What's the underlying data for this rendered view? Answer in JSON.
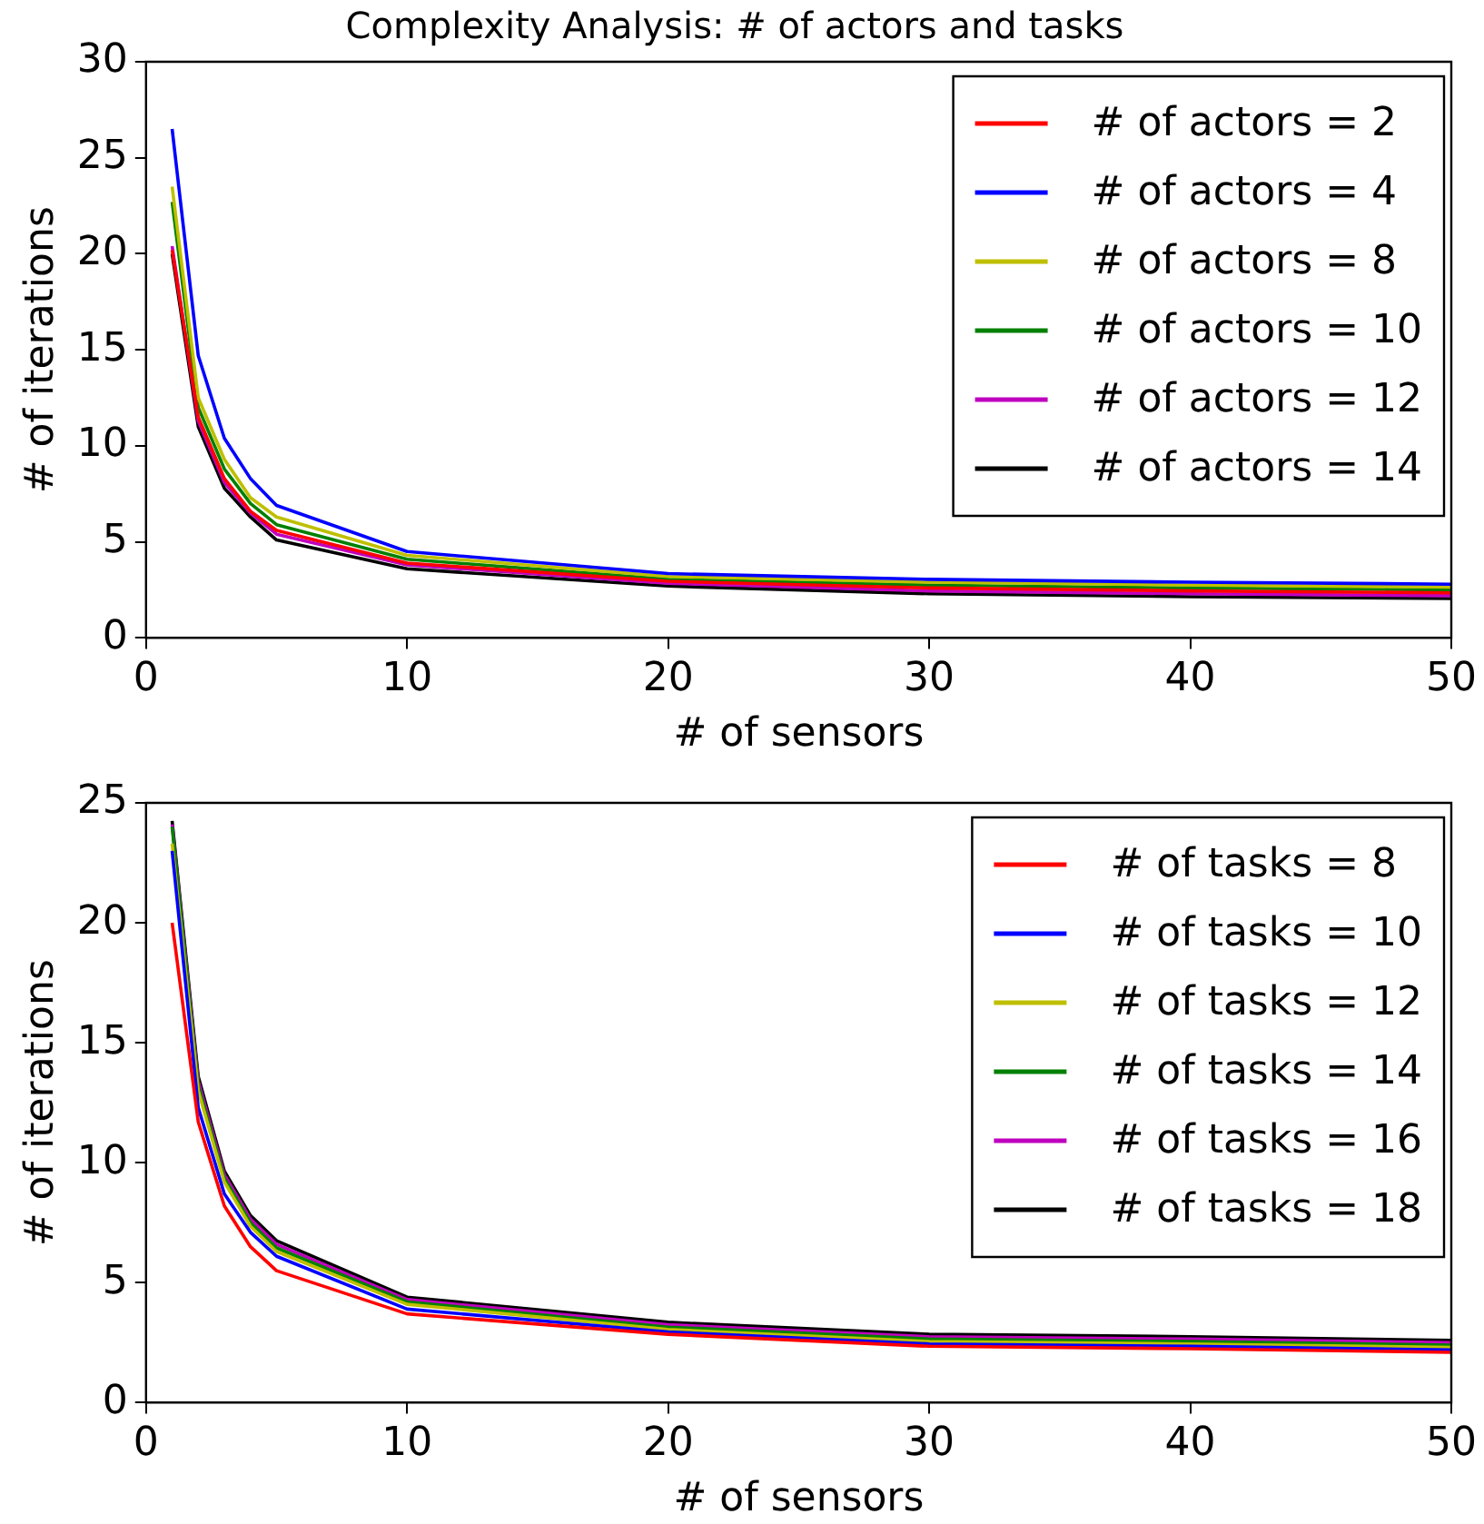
{
  "chart_data": [
    {
      "type": "line",
      "title": "Complexity Analysis: # of actors and tasks",
      "xlabel": "# of sensors",
      "ylabel": "# of iterations",
      "x": [
        1,
        2,
        3,
        4,
        5,
        10,
        20,
        30,
        40,
        50
      ],
      "xlim": [
        0,
        50
      ],
      "xticks": [
        0,
        10,
        20,
        30,
        40,
        50
      ],
      "ylim": [
        0,
        30
      ],
      "yticks": [
        0,
        5,
        10,
        15,
        20,
        25,
        30
      ],
      "grid": false,
      "legend": "top right",
      "marker": "none",
      "line_style": "solid",
      "series": [
        {
          "name": "# of actors = 2",
          "color": "#ff0000",
          "values": [
            20.2,
            11.5,
            8.3,
            6.6,
            5.6,
            3.9,
            2.95,
            2.6,
            2.45,
            2.35
          ]
        },
        {
          "name": "# of actors = 4",
          "color": "#0000ff",
          "values": [
            26.5,
            14.7,
            10.4,
            8.3,
            6.9,
            4.5,
            3.35,
            3.05,
            2.9,
            2.8
          ]
        },
        {
          "name": "# of actors = 8",
          "color": "#bfbf00",
          "values": [
            23.5,
            12.5,
            9.3,
            7.3,
            6.3,
            4.3,
            3.2,
            2.9,
            2.75,
            2.65
          ]
        },
        {
          "name": "# of actors = 10",
          "color": "#008000",
          "values": [
            22.7,
            12.0,
            8.8,
            7.0,
            5.9,
            4.1,
            3.05,
            2.75,
            2.6,
            2.5
          ]
        },
        {
          "name": "# of actors = 12",
          "color": "#bf00bf",
          "values": [
            20.4,
            11.3,
            8.1,
            6.5,
            5.4,
            3.8,
            2.85,
            2.45,
            2.3,
            2.2
          ]
        },
        {
          "name": "# of actors = 14",
          "color": "#000000",
          "values": [
            20.0,
            11.0,
            7.8,
            6.3,
            5.1,
            3.6,
            2.7,
            2.3,
            2.15,
            2.05
          ]
        }
      ]
    },
    {
      "type": "line",
      "xlabel": "# of sensors",
      "ylabel": "# of iterations",
      "x": [
        1,
        2,
        3,
        4,
        5,
        10,
        20,
        30,
        40,
        50
      ],
      "xlim": [
        0,
        50
      ],
      "xticks": [
        0,
        10,
        20,
        30,
        40,
        50
      ],
      "ylim": [
        0,
        25
      ],
      "yticks": [
        0,
        5,
        10,
        15,
        20,
        25
      ],
      "grid": false,
      "legend": "top right",
      "marker": "none",
      "line_style": "solid",
      "series": [
        {
          "name": "# of tasks = 8",
          "color": "#ff0000",
          "values": [
            20.0,
            11.7,
            8.2,
            6.5,
            5.5,
            3.7,
            2.85,
            2.35,
            2.25,
            2.1
          ]
        },
        {
          "name": "# of tasks = 10",
          "color": "#0000ff",
          "values": [
            23.0,
            12.3,
            8.7,
            7.1,
            6.1,
            3.9,
            2.95,
            2.45,
            2.35,
            2.2
          ]
        },
        {
          "name": "# of tasks = 12",
          "color": "#bfbf00",
          "values": [
            23.3,
            13.0,
            9.2,
            7.35,
            6.3,
            4.1,
            3.05,
            2.55,
            2.45,
            2.3
          ]
        },
        {
          "name": "# of tasks = 14",
          "color": "#008000",
          "values": [
            24.0,
            13.2,
            9.35,
            7.5,
            6.45,
            4.2,
            3.15,
            2.65,
            2.55,
            2.4
          ]
        },
        {
          "name": "# of tasks = 16",
          "color": "#bf00bf",
          "values": [
            24.1,
            13.4,
            9.5,
            7.65,
            6.6,
            4.3,
            3.25,
            2.75,
            2.65,
            2.5
          ]
        },
        {
          "name": "# of tasks = 18",
          "color": "#000000",
          "values": [
            24.25,
            13.6,
            9.65,
            7.8,
            6.75,
            4.4,
            3.35,
            2.85,
            2.75,
            2.6
          ]
        }
      ]
    }
  ]
}
